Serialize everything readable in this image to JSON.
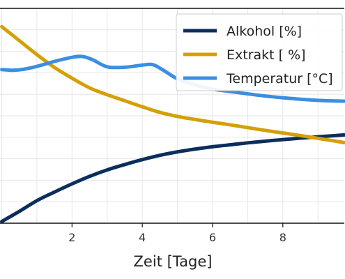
{
  "chart_data": {
    "type": "line",
    "xlabel": "Zeit [Tage]",
    "xlim": [
      -0.05,
      9.75
    ],
    "ylim": [
      0,
      100
    ],
    "x_ticks": [
      2,
      4,
      6,
      8
    ],
    "grid": true,
    "legend_placement": "top-right",
    "series": [
      {
        "name": "Alkohol [%]",
        "color": "#0b2e5c",
        "points": [
          [
            0,
            0.8
          ],
          [
            0.5,
            5.5
          ],
          [
            1,
            10.5
          ],
          [
            1.5,
            14.5
          ],
          [
            2,
            18.3
          ],
          [
            2.5,
            21.8
          ],
          [
            3,
            24.8
          ],
          [
            3.5,
            27.3
          ],
          [
            4,
            29.6
          ],
          [
            4.5,
            31.6
          ],
          [
            5,
            33.2
          ],
          [
            5.5,
            34.5
          ],
          [
            6,
            35.6
          ],
          [
            6.5,
            36.5
          ],
          [
            7,
            37.4
          ],
          [
            7.5,
            38.2
          ],
          [
            8,
            38.9
          ],
          [
            8.5,
            39.6
          ],
          [
            9,
            40.2
          ],
          [
            9.5,
            40.8
          ],
          [
            9.75,
            41.1
          ]
        ]
      },
      {
        "name": "Extrakt [ %]",
        "color": "#d4a008",
        "points": [
          [
            0,
            91.5
          ],
          [
            0.5,
            85
          ],
          [
            1,
            78.5
          ],
          [
            1.5,
            72.5
          ],
          [
            2,
            67.5
          ],
          [
            2.5,
            63
          ],
          [
            3,
            59.8
          ],
          [
            3.5,
            57
          ],
          [
            4,
            54.2
          ],
          [
            4.5,
            51.6
          ],
          [
            5,
            49.7
          ],
          [
            5.5,
            48.3
          ],
          [
            6,
            47
          ],
          [
            6.5,
            45.8
          ],
          [
            7,
            44.5
          ],
          [
            7.5,
            43.2
          ],
          [
            8,
            42
          ],
          [
            8.5,
            40.8
          ],
          [
            9,
            39.5
          ],
          [
            9.5,
            38.2
          ],
          [
            9.75,
            37.5
          ]
        ]
      },
      {
        "name": "Temperatur [°C]",
        "color": "#3b8fe0",
        "points": [
          [
            0,
            71.5
          ],
          [
            0.3,
            71.2
          ],
          [
            0.6,
            71.6
          ],
          [
            1,
            73
          ],
          [
            1.5,
            75.3
          ],
          [
            2,
            77.2
          ],
          [
            2.3,
            77.6
          ],
          [
            2.6,
            76
          ],
          [
            3,
            72.8
          ],
          [
            3.5,
            72.6
          ],
          [
            4,
            73.6
          ],
          [
            4.3,
            73.8
          ],
          [
            4.6,
            71.2
          ],
          [
            5,
            67.2
          ],
          [
            5.5,
            64.4
          ],
          [
            6,
            62.4
          ],
          [
            6.5,
            61.3
          ],
          [
            7,
            60.2
          ],
          [
            7.5,
            59.2
          ],
          [
            8,
            58.4
          ],
          [
            8.5,
            57.7
          ],
          [
            9,
            57.2
          ],
          [
            9.5,
            56.9
          ],
          [
            9.75,
            56.8
          ]
        ]
      }
    ]
  }
}
